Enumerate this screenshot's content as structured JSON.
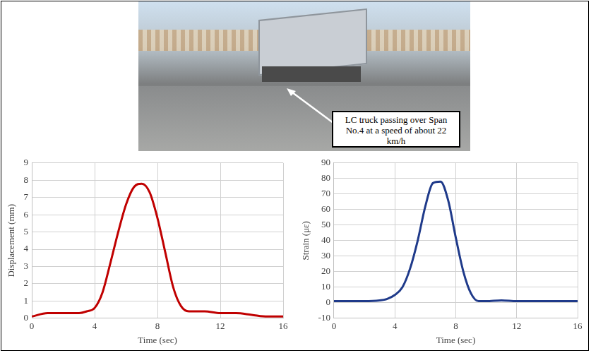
{
  "photo": {
    "annotation": "LC truck passing over Span No.4 at a speed of about 22 km/h"
  },
  "chart_data": [
    {
      "type": "line",
      "x_label": "Time (sec)",
      "y_label": "Displacement (mm)",
      "x": [
        0,
        1,
        2,
        3,
        3.5,
        4,
        4.5,
        5,
        5.5,
        6,
        6.5,
        7,
        7.5,
        8,
        8.5,
        9,
        9.5,
        10,
        11,
        12,
        13,
        14,
        15,
        16
      ],
      "values": [
        0.1,
        0.3,
        0.3,
        0.3,
        0.4,
        0.6,
        1.5,
        3.2,
        5.0,
        6.6,
        7.6,
        7.8,
        7.3,
        5.8,
        3.8,
        1.8,
        0.7,
        0.4,
        0.4,
        0.3,
        0.3,
        0.2,
        0.1,
        0.1
      ],
      "color": "#c00000",
      "xlim": [
        0,
        16
      ],
      "xticks": [
        0,
        4,
        8,
        12,
        16
      ],
      "ylim": [
        0,
        9
      ],
      "yticks": [
        0,
        1,
        2,
        3,
        4,
        5,
        6,
        7,
        8,
        9
      ],
      "grid": true
    },
    {
      "type": "line",
      "x_label": "Time (sec)",
      "y_label": "Strain (με)",
      "x": [
        0,
        2,
        3,
        3.5,
        4,
        4.5,
        5,
        5.5,
        6,
        6.5,
        7,
        7.5,
        8,
        8.5,
        9,
        9.5,
        10,
        11,
        12,
        12.5,
        13,
        16
      ],
      "values": [
        1,
        1,
        1.5,
        2.5,
        5,
        10,
        22,
        40,
        62,
        77,
        78,
        66,
        42,
        20,
        6,
        1,
        1,
        1.5,
        1,
        1,
        1,
        1
      ],
      "color": "#1f3a8a",
      "xlim": [
        0,
        16
      ],
      "xticks": [
        0,
        4,
        8,
        12,
        16
      ],
      "ylim": [
        -10,
        90
      ],
      "yticks": [
        -10,
        0,
        10,
        20,
        30,
        40,
        50,
        60,
        70,
        80,
        90
      ],
      "grid": true
    }
  ]
}
